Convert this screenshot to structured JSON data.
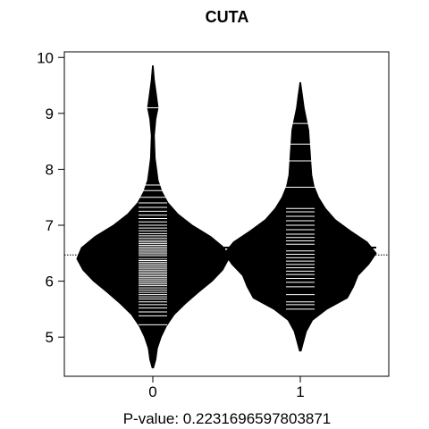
{
  "chart_data": {
    "type": "beanplot",
    "title": "CUTA",
    "xlabel": "P-value: 0.2231696597803871",
    "ylabel": "",
    "categories": [
      "0",
      "1"
    ],
    "ylim": [
      4.3,
      10.1
    ],
    "yticks": [
      5,
      6,
      7,
      8,
      9,
      10
    ],
    "overall_mean": 6.47,
    "group_means": [
      6.42,
      6.6
    ],
    "grid": false,
    "bean_color": "#000000",
    "beanline_color": "#ffffff",
    "density": [
      {
        "profile": [
          [
            4.45,
            0.01
          ],
          [
            4.6,
            0.04
          ],
          [
            4.8,
            0.06
          ],
          [
            5.0,
            0.11
          ],
          [
            5.2,
            0.18
          ],
          [
            5.4,
            0.28
          ],
          [
            5.6,
            0.43
          ],
          [
            5.8,
            0.6
          ],
          [
            6.0,
            0.78
          ],
          [
            6.2,
            0.92
          ],
          [
            6.4,
            1.0
          ],
          [
            6.6,
            0.94
          ],
          [
            6.8,
            0.76
          ],
          [
            7.0,
            0.52
          ],
          [
            7.2,
            0.33
          ],
          [
            7.4,
            0.2
          ],
          [
            7.6,
            0.12
          ],
          [
            7.8,
            0.07
          ],
          [
            8.0,
            0.05
          ],
          [
            8.2,
            0.03
          ],
          [
            8.6,
            0.02
          ],
          [
            8.9,
            0.04
          ],
          [
            9.1,
            0.07
          ],
          [
            9.3,
            0.05
          ],
          [
            9.6,
            0.02
          ],
          [
            9.85,
            0.005
          ]
        ],
        "observations": [
          5.22,
          5.38,
          5.45,
          5.52,
          5.58,
          5.63,
          5.68,
          5.72,
          5.76,
          5.8,
          5.84,
          5.88,
          5.92,
          5.95,
          5.98,
          6.01,
          6.04,
          6.07,
          6.1,
          6.13,
          6.16,
          6.19,
          6.22,
          6.25,
          6.28,
          6.31,
          6.34,
          6.37,
          6.4,
          6.43,
          6.46,
          6.49,
          6.52,
          6.55,
          6.58,
          6.61,
          6.64,
          6.67,
          6.7,
          6.73,
          6.77,
          6.81,
          6.85,
          6.9,
          6.95,
          7.0,
          7.06,
          7.12,
          7.18,
          7.25,
          7.32,
          7.4,
          7.5,
          7.62,
          7.72,
          9.1
        ]
      },
      {
        "profile": [
          [
            4.75,
            0.01
          ],
          [
            4.9,
            0.04
          ],
          [
            5.1,
            0.08
          ],
          [
            5.3,
            0.16
          ],
          [
            5.5,
            0.35
          ],
          [
            5.7,
            0.62
          ],
          [
            5.9,
            0.7
          ],
          [
            6.1,
            0.76
          ],
          [
            6.3,
            0.9
          ],
          [
            6.5,
            1.0
          ],
          [
            6.7,
            0.88
          ],
          [
            6.9,
            0.66
          ],
          [
            7.1,
            0.46
          ],
          [
            7.3,
            0.33
          ],
          [
            7.5,
            0.24
          ],
          [
            7.7,
            0.18
          ],
          [
            7.9,
            0.15
          ],
          [
            8.1,
            0.14
          ],
          [
            8.3,
            0.13
          ],
          [
            8.5,
            0.12
          ],
          [
            8.7,
            0.11
          ],
          [
            8.9,
            0.08
          ],
          [
            9.1,
            0.05
          ],
          [
            9.3,
            0.03
          ],
          [
            9.55,
            0.005
          ]
        ],
        "observations": [
          5.5,
          5.58,
          5.63,
          5.76,
          5.9,
          5.98,
          6.05,
          6.12,
          6.18,
          6.24,
          6.3,
          6.36,
          6.42,
          6.48,
          6.54,
          6.6,
          6.66,
          6.72,
          6.78,
          6.84,
          6.92,
          7.0,
          7.08,
          7.16,
          7.24,
          7.3,
          7.68,
          8.15,
          8.45,
          8.82
        ]
      }
    ]
  }
}
